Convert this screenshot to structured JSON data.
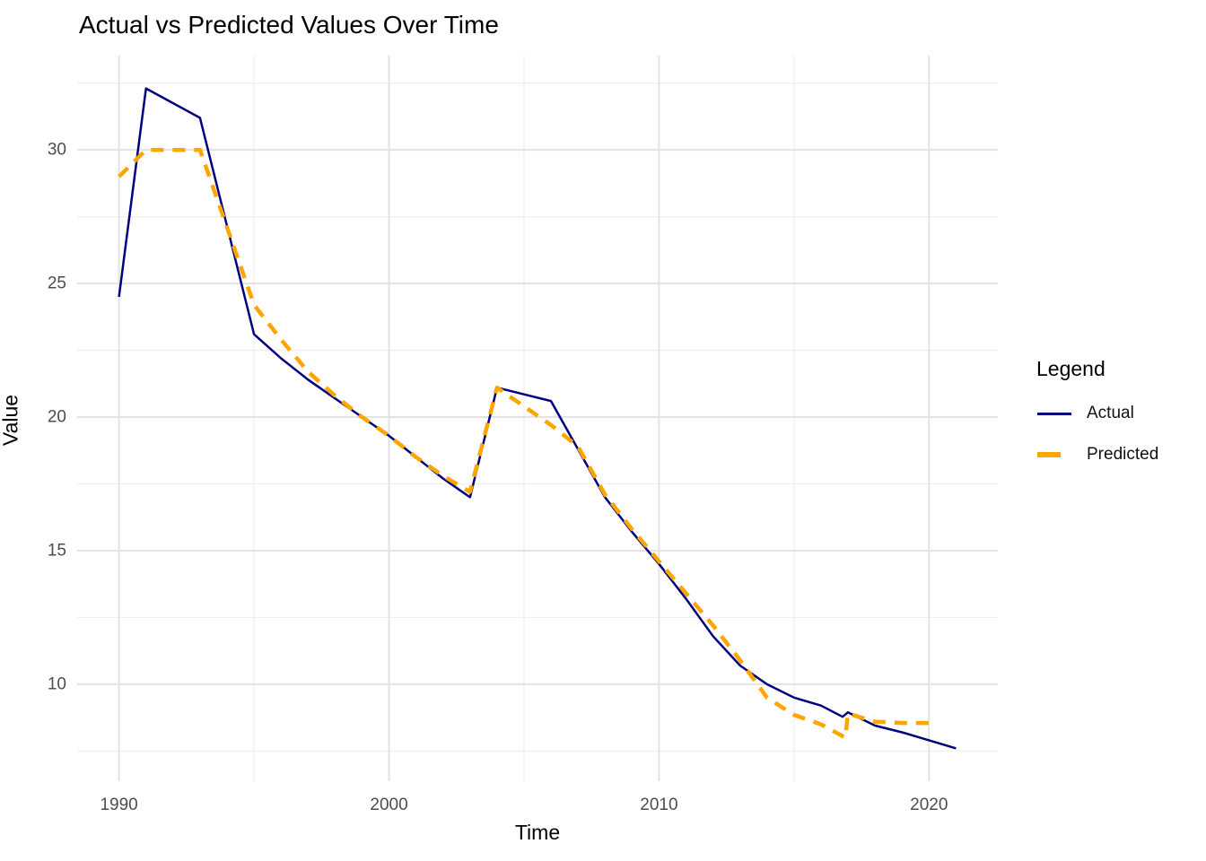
{
  "chart_data": {
    "type": "line",
    "title": "Actual vs Predicted Values Over Time",
    "xlabel": "Time",
    "ylabel": "Value",
    "legend_title": "Legend",
    "legend_position": "right",
    "grid": true,
    "xlim": [
      1988.45,
      2022.55
    ],
    "ylim": [
      6.37,
      33.53
    ],
    "x_ticks": [
      1990,
      2000,
      2010,
      2020
    ],
    "x_minor_ticks": [
      1995,
      2005,
      2015
    ],
    "y_ticks": [
      10,
      15,
      20,
      25,
      30
    ],
    "y_minor_ticks": [
      7.5,
      12.5,
      17.5,
      22.5,
      27.5,
      32.5
    ],
    "colors": {
      "background": "#FFFFFF",
      "grid_major": "#E3E3E3",
      "grid_minor": "#EFEFEF",
      "tick_label": "#4D4D4D",
      "text": "#000000",
      "actual": "#000080",
      "predicted": "#FFA500"
    },
    "series": [
      {
        "name": "Actual",
        "color": "#000080",
        "style": "solid",
        "stroke_width": 2.5,
        "points": [
          [
            1990,
            24.5
          ],
          [
            1991,
            32.3
          ],
          [
            1992,
            31.75
          ],
          [
            1993,
            31.2
          ],
          [
            1994,
            27.15
          ],
          [
            1995,
            23.1
          ],
          [
            1996,
            22.2
          ],
          [
            1997,
            21.4
          ],
          [
            1998,
            20.7
          ],
          [
            1999,
            20.0
          ],
          [
            2000,
            19.3
          ],
          [
            2001,
            18.5
          ],
          [
            2002,
            17.7
          ],
          [
            2003,
            17.0
          ],
          [
            2004,
            21.1
          ],
          [
            2005,
            20.85
          ],
          [
            2006,
            20.6
          ],
          [
            2007,
            18.8
          ],
          [
            2008,
            17.0
          ],
          [
            2009,
            15.7
          ],
          [
            2010,
            14.5
          ],
          [
            2011,
            13.2
          ],
          [
            2012,
            11.8
          ],
          [
            2013,
            10.7
          ],
          [
            2014,
            10.0
          ],
          [
            2015,
            9.5
          ],
          [
            2016,
            9.2
          ],
          [
            2016.8,
            8.78
          ],
          [
            2017,
            8.95
          ],
          [
            2018,
            8.45
          ],
          [
            2019,
            8.2
          ],
          [
            2020,
            7.9
          ],
          [
            2021,
            7.6
          ]
        ]
      },
      {
        "name": "Predicted",
        "color": "#FFA500",
        "style": "dashed",
        "stroke_width": 4.5,
        "points": [
          [
            1990,
            29.0
          ],
          [
            1991,
            30.0
          ],
          [
            1992,
            30.0
          ],
          [
            1993,
            30.0
          ],
          [
            1994,
            27.1
          ],
          [
            1995,
            24.2
          ],
          [
            1996,
            22.9
          ],
          [
            1997,
            21.7
          ],
          [
            1998,
            20.8
          ],
          [
            1999,
            20.0
          ],
          [
            2000,
            19.3
          ],
          [
            2001,
            18.5
          ],
          [
            2002,
            17.8
          ],
          [
            2003,
            17.2
          ],
          [
            2004,
            21.1
          ],
          [
            2005,
            20.4
          ],
          [
            2006,
            19.7
          ],
          [
            2007,
            18.9
          ],
          [
            2008,
            17.1
          ],
          [
            2009,
            15.8
          ],
          [
            2010,
            14.6
          ],
          [
            2011,
            13.4
          ],
          [
            2012,
            12.2
          ],
          [
            2013,
            10.9
          ],
          [
            2014,
            9.5
          ],
          [
            2015,
            8.85
          ],
          [
            2016,
            8.5
          ],
          [
            2016.9,
            8.0
          ],
          [
            2017,
            8.9
          ],
          [
            2018,
            8.6
          ],
          [
            2019,
            8.55
          ],
          [
            2020,
            8.55
          ]
        ]
      }
    ]
  }
}
